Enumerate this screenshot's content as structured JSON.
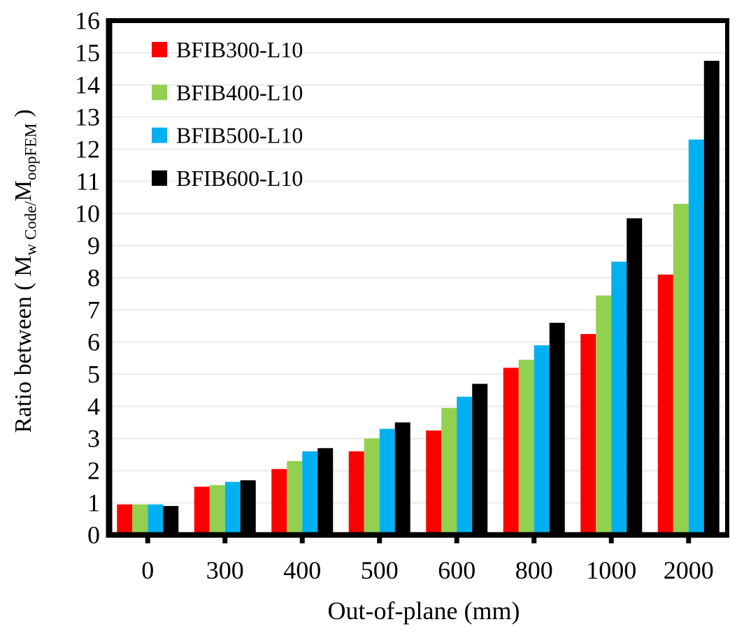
{
  "chart_data": {
    "type": "bar",
    "title": "",
    "xlabel": "Out-of-plane (mm)",
    "ylabel": "Ratio between ( Mw Code/MoopFEM )",
    "ylabel_rich": {
      "prefix": "Ratio between ( M",
      "sub1": "w Code/",
      "mid": "M",
      "sub2": "oopFEM",
      "suffix": " )"
    },
    "categories": [
      "0",
      "300",
      "400",
      "500",
      "600",
      "800",
      "1000",
      "2000"
    ],
    "series": [
      {
        "name": "BFIB300-L10",
        "color": "#FF0000",
        "values": [
          0.95,
          1.5,
          2.05,
          2.6,
          3.25,
          5.2,
          6.25,
          8.1
        ]
      },
      {
        "name": "BFIB400-L10",
        "color": "#92D050",
        "values": [
          0.95,
          1.55,
          2.3,
          3.0,
          3.95,
          5.45,
          7.45,
          10.3
        ]
      },
      {
        "name": "BFIB500-L10",
        "color": "#00B0F0",
        "values": [
          0.95,
          1.65,
          2.6,
          3.3,
          4.3,
          5.9,
          8.5,
          12.3
        ]
      },
      {
        "name": "BFIB600-L10",
        "color": "#000000",
        "values": [
          0.9,
          1.7,
          2.7,
          3.5,
          4.7,
          6.6,
          9.85,
          14.75
        ]
      }
    ],
    "ylim": [
      0,
      16
    ],
    "y_tick_step": 1,
    "y_ticks": [
      "0",
      "1",
      "2",
      "3",
      "4",
      "5",
      "6",
      "7",
      "8",
      "9",
      "10",
      "11",
      "12",
      "13",
      "14",
      "15",
      "16"
    ],
    "grid": true,
    "gridline_color": "#F0F0F0",
    "axis_color": "#000000",
    "background": "#FFFFFF",
    "legend_position": "top-left-inside"
  }
}
